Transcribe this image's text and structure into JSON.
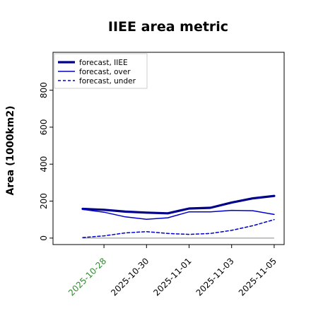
{
  "chart_data": {
    "type": "line",
    "title": "IIEE area metric",
    "ylabel": "Area (1000km2)",
    "xlabel": "",
    "x": [
      "2025-10-27",
      "2025-10-28",
      "2025-10-29",
      "2025-10-30",
      "2025-10-31",
      "2025-11-01",
      "2025-11-02",
      "2025-11-03",
      "2025-11-04",
      "2025-11-05"
    ],
    "xticks": [
      "2025-10-28",
      "2025-10-30",
      "2025-11-01",
      "2025-11-03",
      "2025-11-05"
    ],
    "xtick_highlight": "2025-10-28",
    "xtick_highlight_color": "#2e8b2e",
    "ylim": [
      -35,
      1005
    ],
    "yticks": [
      0,
      200,
      400,
      600,
      800
    ],
    "grid": false,
    "legend_position": "top-left",
    "series": [
      {
        "name": "forecast, IIEE",
        "color": "#00008b",
        "style": "solid-thick",
        "values": [
          158,
          153,
          143,
          138,
          134,
          160,
          164,
          192,
          215,
          228
        ]
      },
      {
        "name": "forecast, over",
        "color": "#0000cd",
        "style": "solid",
        "values": [
          155,
          140,
          115,
          102,
          110,
          142,
          142,
          150,
          148,
          128
        ]
      },
      {
        "name": "forecast, under",
        "color": "#0000cd",
        "style": "dashed",
        "values": [
          3,
          12,
          28,
          35,
          25,
          20,
          25,
          42,
          67,
          100
        ]
      }
    ],
    "baseline": {
      "value": 0,
      "color": "#888888"
    }
  }
}
